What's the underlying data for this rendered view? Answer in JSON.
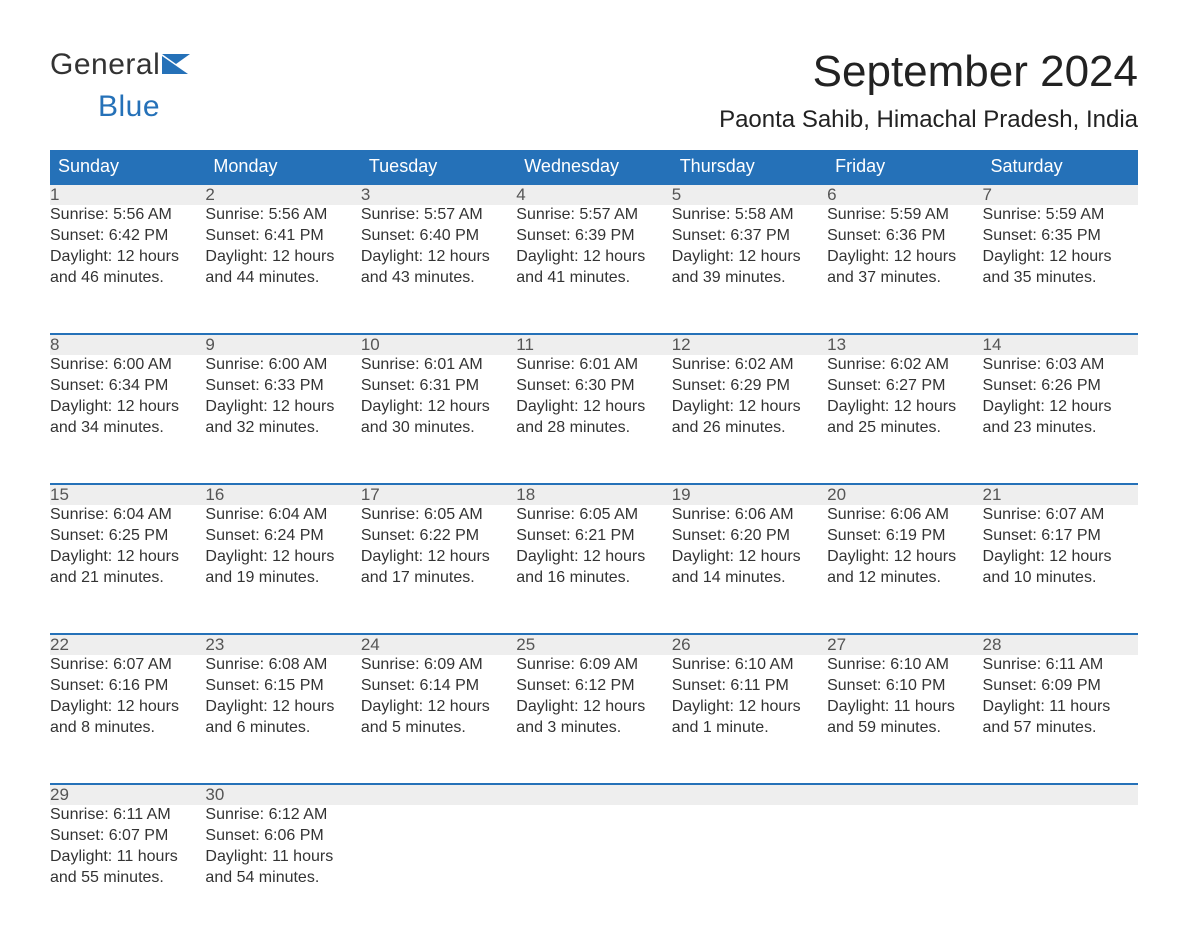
{
  "brand": {
    "line1": "General",
    "line2": "Blue",
    "accent_color": "#2571b8",
    "text_color": "#333333"
  },
  "title": "September 2024",
  "subtitle": "Paonta Sahib, Himachal Pradesh, India",
  "day_headers": [
    "Sunday",
    "Monday",
    "Tuesday",
    "Wednesday",
    "Thursday",
    "Friday",
    "Saturday"
  ],
  "colors": {
    "header_bg": "#2571b8",
    "header_text": "#ffffff",
    "daynum_bg": "#eeeeee",
    "daynum_border": "#2571b8",
    "body_text": "#333333",
    "page_bg": "#ffffff"
  },
  "weeks": [
    [
      {
        "n": "1",
        "sunrise": "Sunrise: 5:56 AM",
        "sunset": "Sunset: 6:42 PM",
        "daylight": "Daylight: 12 hours and 46 minutes."
      },
      {
        "n": "2",
        "sunrise": "Sunrise: 5:56 AM",
        "sunset": "Sunset: 6:41 PM",
        "daylight": "Daylight: 12 hours and 44 minutes."
      },
      {
        "n": "3",
        "sunrise": "Sunrise: 5:57 AM",
        "sunset": "Sunset: 6:40 PM",
        "daylight": "Daylight: 12 hours and 43 minutes."
      },
      {
        "n": "4",
        "sunrise": "Sunrise: 5:57 AM",
        "sunset": "Sunset: 6:39 PM",
        "daylight": "Daylight: 12 hours and 41 minutes."
      },
      {
        "n": "5",
        "sunrise": "Sunrise: 5:58 AM",
        "sunset": "Sunset: 6:37 PM",
        "daylight": "Daylight: 12 hours and 39 minutes."
      },
      {
        "n": "6",
        "sunrise": "Sunrise: 5:59 AM",
        "sunset": "Sunset: 6:36 PM",
        "daylight": "Daylight: 12 hours and 37 minutes."
      },
      {
        "n": "7",
        "sunrise": "Sunrise: 5:59 AM",
        "sunset": "Sunset: 6:35 PM",
        "daylight": "Daylight: 12 hours and 35 minutes."
      }
    ],
    [
      {
        "n": "8",
        "sunrise": "Sunrise: 6:00 AM",
        "sunset": "Sunset: 6:34 PM",
        "daylight": "Daylight: 12 hours and 34 minutes."
      },
      {
        "n": "9",
        "sunrise": "Sunrise: 6:00 AM",
        "sunset": "Sunset: 6:33 PM",
        "daylight": "Daylight: 12 hours and 32 minutes."
      },
      {
        "n": "10",
        "sunrise": "Sunrise: 6:01 AM",
        "sunset": "Sunset: 6:31 PM",
        "daylight": "Daylight: 12 hours and 30 minutes."
      },
      {
        "n": "11",
        "sunrise": "Sunrise: 6:01 AM",
        "sunset": "Sunset: 6:30 PM",
        "daylight": "Daylight: 12 hours and 28 minutes."
      },
      {
        "n": "12",
        "sunrise": "Sunrise: 6:02 AM",
        "sunset": "Sunset: 6:29 PM",
        "daylight": "Daylight: 12 hours and 26 minutes."
      },
      {
        "n": "13",
        "sunrise": "Sunrise: 6:02 AM",
        "sunset": "Sunset: 6:27 PM",
        "daylight": "Daylight: 12 hours and 25 minutes."
      },
      {
        "n": "14",
        "sunrise": "Sunrise: 6:03 AM",
        "sunset": "Sunset: 6:26 PM",
        "daylight": "Daylight: 12 hours and 23 minutes."
      }
    ],
    [
      {
        "n": "15",
        "sunrise": "Sunrise: 6:04 AM",
        "sunset": "Sunset: 6:25 PM",
        "daylight": "Daylight: 12 hours and 21 minutes."
      },
      {
        "n": "16",
        "sunrise": "Sunrise: 6:04 AM",
        "sunset": "Sunset: 6:24 PM",
        "daylight": "Daylight: 12 hours and 19 minutes."
      },
      {
        "n": "17",
        "sunrise": "Sunrise: 6:05 AM",
        "sunset": "Sunset: 6:22 PM",
        "daylight": "Daylight: 12 hours and 17 minutes."
      },
      {
        "n": "18",
        "sunrise": "Sunrise: 6:05 AM",
        "sunset": "Sunset: 6:21 PM",
        "daylight": "Daylight: 12 hours and 16 minutes."
      },
      {
        "n": "19",
        "sunrise": "Sunrise: 6:06 AM",
        "sunset": "Sunset: 6:20 PM",
        "daylight": "Daylight: 12 hours and 14 minutes."
      },
      {
        "n": "20",
        "sunrise": "Sunrise: 6:06 AM",
        "sunset": "Sunset: 6:19 PM",
        "daylight": "Daylight: 12 hours and 12 minutes."
      },
      {
        "n": "21",
        "sunrise": "Sunrise: 6:07 AM",
        "sunset": "Sunset: 6:17 PM",
        "daylight": "Daylight: 12 hours and 10 minutes."
      }
    ],
    [
      {
        "n": "22",
        "sunrise": "Sunrise: 6:07 AM",
        "sunset": "Sunset: 6:16 PM",
        "daylight": "Daylight: 12 hours and 8 minutes."
      },
      {
        "n": "23",
        "sunrise": "Sunrise: 6:08 AM",
        "sunset": "Sunset: 6:15 PM",
        "daylight": "Daylight: 12 hours and 6 minutes."
      },
      {
        "n": "24",
        "sunrise": "Sunrise: 6:09 AM",
        "sunset": "Sunset: 6:14 PM",
        "daylight": "Daylight: 12 hours and 5 minutes."
      },
      {
        "n": "25",
        "sunrise": "Sunrise: 6:09 AM",
        "sunset": "Sunset: 6:12 PM",
        "daylight": "Daylight: 12 hours and 3 minutes."
      },
      {
        "n": "26",
        "sunrise": "Sunrise: 6:10 AM",
        "sunset": "Sunset: 6:11 PM",
        "daylight": "Daylight: 12 hours and 1 minute."
      },
      {
        "n": "27",
        "sunrise": "Sunrise: 6:10 AM",
        "sunset": "Sunset: 6:10 PM",
        "daylight": "Daylight: 11 hours and 59 minutes."
      },
      {
        "n": "28",
        "sunrise": "Sunrise: 6:11 AM",
        "sunset": "Sunset: 6:09 PM",
        "daylight": "Daylight: 11 hours and 57 minutes."
      }
    ],
    [
      {
        "n": "29",
        "sunrise": "Sunrise: 6:11 AM",
        "sunset": "Sunset: 6:07 PM",
        "daylight": "Daylight: 11 hours and 55 minutes."
      },
      {
        "n": "30",
        "sunrise": "Sunrise: 6:12 AM",
        "sunset": "Sunset: 6:06 PM",
        "daylight": "Daylight: 11 hours and 54 minutes."
      },
      null,
      null,
      null,
      null,
      null
    ]
  ]
}
